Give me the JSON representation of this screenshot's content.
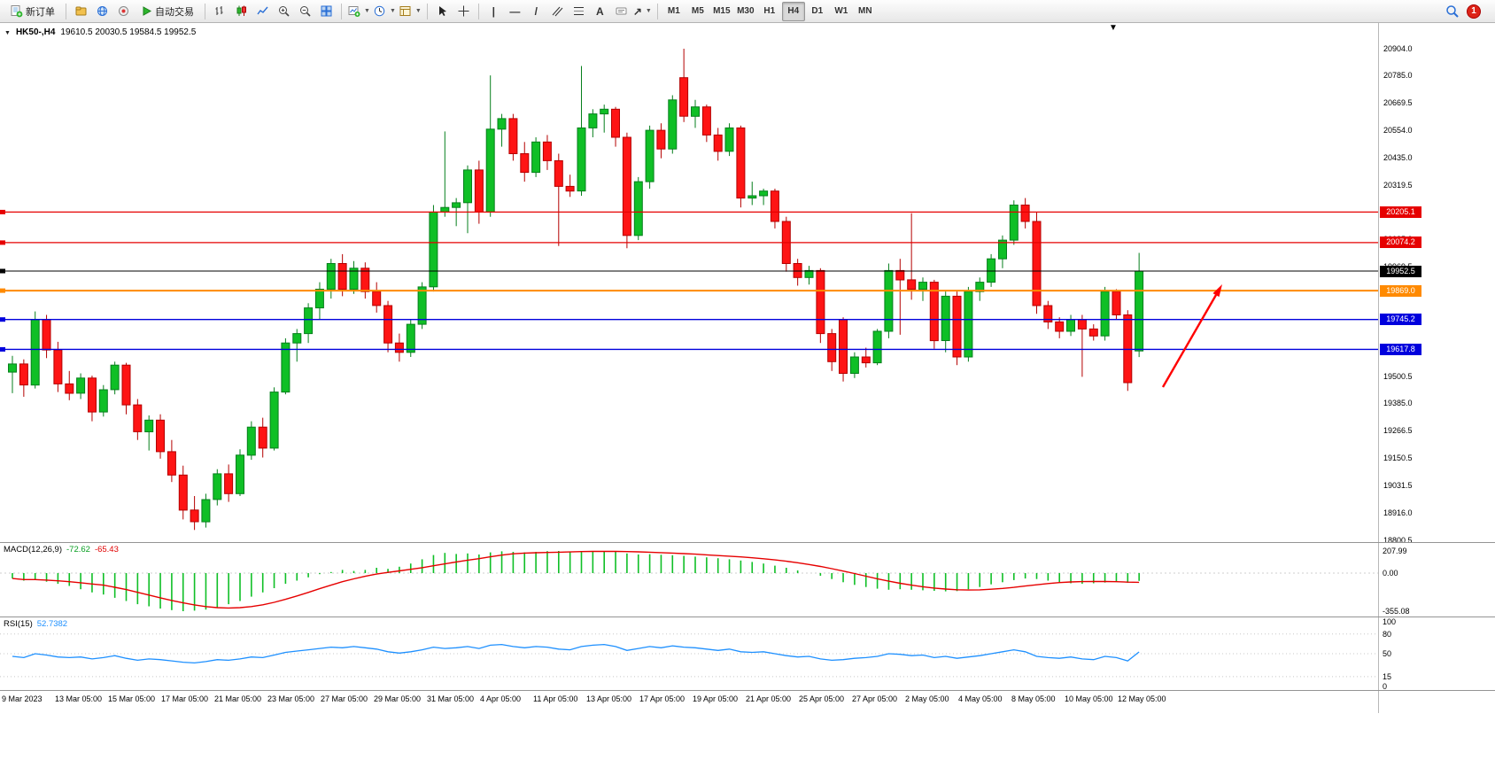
{
  "window": {
    "notification_count": "1"
  },
  "toolbar": {
    "new_order": "新订单",
    "autotrading": "自动交易",
    "timeframes": [
      {
        "label": "M1",
        "active": false
      },
      {
        "label": "M5",
        "active": false
      },
      {
        "label": "M15",
        "active": false
      },
      {
        "label": "M30",
        "active": false
      },
      {
        "label": "H1",
        "active": false
      },
      {
        "label": "H4",
        "active": true
      },
      {
        "label": "D1",
        "active": false
      },
      {
        "label": "W1",
        "active": false
      },
      {
        "label": "MN",
        "active": false
      }
    ]
  },
  "chart": {
    "symbol": "HK50-,H4",
    "ohlc": "19610.5 20030.5 19584.5 19952.5",
    "lines": [
      {
        "price": 20205.1,
        "label": "20205.1",
        "color": "#e60000",
        "width": 1.2
      },
      {
        "price": 20074.2,
        "label": "20074.2",
        "color": "#e60000",
        "width": 1.2
      },
      {
        "price": 19952.5,
        "label": "19952.5",
        "color": "#000000",
        "width": 1
      },
      {
        "price": 19869.0,
        "label": "19869.0",
        "color": "#ff8a00",
        "width": 2
      },
      {
        "price": 19745.2,
        "label": "19745.2",
        "color": "#0000dd",
        "width": 1.4
      },
      {
        "price": 19617.8,
        "label": "19617.8",
        "color": "#0000dd",
        "width": 1.4
      }
    ],
    "price_ticks": [
      "20904.0",
      "20785.0",
      "20669.5",
      "20554.0",
      "20435.0",
      "20319.5",
      "20204.0",
      "20085.0",
      "19969.5",
      "19850.5",
      "19735.0",
      "19619.5",
      "19500.5",
      "19385.0",
      "19266.5",
      "19150.5",
      "19031.5",
      "18916.0",
      "18800.5"
    ],
    "time_ticks": [
      "9 Mar 2023",
      "13 Mar 05:00",
      "15 Mar 05:00",
      "17 Mar 05:00",
      "21 Mar 05:00",
      "23 Mar 05:00",
      "27 Mar 05:00",
      "29 Mar 05:00",
      "31 Mar 05:00",
      "4 Apr 05:00",
      "11 Apr 05:00",
      "13 Apr 05:00",
      "17 Apr 05:00",
      "19 Apr 05:00",
      "21 Apr 05:00",
      "25 Apr 05:00",
      "27 Apr 05:00",
      "2 May 05:00",
      "4 May 05:00",
      "8 May 05:00",
      "10 May 05:00",
      "12 May 05:00"
    ]
  },
  "chart_data": {
    "type": "candlestick",
    "symbol": "HK50-",
    "timeframe": "H4",
    "ylim": [
      18800.5,
      20904.0
    ],
    "up_color": "#0fbf26",
    "down_color": "#fe1414",
    "candles": [
      [
        19520,
        19590,
        19430,
        19555
      ],
      [
        19555,
        19575,
        19415,
        19465
      ],
      [
        19465,
        19780,
        19450,
        19745
      ],
      [
        19745,
        19765,
        19580,
        19615
      ],
      [
        19615,
        19650,
        19435,
        19470
      ],
      [
        19470,
        19525,
        19400,
        19430
      ],
      [
        19430,
        19515,
        19405,
        19495
      ],
      [
        19495,
        19505,
        19310,
        19350
      ],
      [
        19350,
        19465,
        19330,
        19445
      ],
      [
        19445,
        19565,
        19425,
        19550
      ],
      [
        19550,
        19560,
        19340,
        19380
      ],
      [
        19380,
        19405,
        19230,
        19265
      ],
      [
        19265,
        19335,
        19185,
        19315
      ],
      [
        19315,
        19340,
        19150,
        19180
      ],
      [
        19180,
        19230,
        19050,
        19080
      ],
      [
        19080,
        19120,
        18890,
        18930
      ],
      [
        18930,
        18990,
        18845,
        18880
      ],
      [
        18880,
        19000,
        18855,
        18975
      ],
      [
        18975,
        19105,
        18950,
        19085
      ],
      [
        19085,
        19125,
        18965,
        19000
      ],
      [
        19000,
        19190,
        18990,
        19165
      ],
      [
        19165,
        19310,
        19145,
        19285
      ],
      [
        19285,
        19325,
        19155,
        19195
      ],
      [
        19195,
        19455,
        19185,
        19435
      ],
      [
        19435,
        19665,
        19425,
        19645
      ],
      [
        19645,
        19705,
        19565,
        19685
      ],
      [
        19685,
        19815,
        19645,
        19795
      ],
      [
        19795,
        19905,
        19745,
        19875
      ],
      [
        19875,
        20005,
        19835,
        19985
      ],
      [
        19985,
        20025,
        19845,
        19875
      ],
      [
        19875,
        19995,
        19855,
        19965
      ],
      [
        19965,
        19990,
        19835,
        19865
      ],
      [
        19865,
        19905,
        19775,
        19805
      ],
      [
        19805,
        19825,
        19605,
        19645
      ],
      [
        19645,
        19685,
        19565,
        19605
      ],
      [
        19605,
        19745,
        19585,
        19725
      ],
      [
        19725,
        19905,
        19705,
        19885
      ],
      [
        19885,
        20235,
        19865,
        20205
      ],
      [
        20205,
        20550,
        20185,
        20225
      ],
      [
        20225,
        20265,
        20145,
        20245
      ],
      [
        20245,
        20405,
        20115,
        20385
      ],
      [
        20385,
        20425,
        20155,
        20205
      ],
      [
        20205,
        20790,
        20185,
        20560
      ],
      [
        20560,
        20625,
        20485,
        20605
      ],
      [
        20605,
        20625,
        20425,
        20455
      ],
      [
        20455,
        20505,
        20335,
        20375
      ],
      [
        20375,
        20525,
        20355,
        20505
      ],
      [
        20505,
        20535,
        20385,
        20425
      ],
      [
        20425,
        20455,
        20060,
        20315
      ],
      [
        20315,
        20365,
        20270,
        20295
      ],
      [
        20295,
        20830,
        20275,
        20565
      ],
      [
        20565,
        20645,
        20525,
        20625
      ],
      [
        20625,
        20665,
        20545,
        20645
      ],
      [
        20645,
        20655,
        20485,
        20525
      ],
      [
        20525,
        20545,
        20050,
        20105
      ],
      [
        20105,
        20355,
        20085,
        20335
      ],
      [
        20335,
        20575,
        20305,
        20555
      ],
      [
        20555,
        20585,
        20435,
        20475
      ],
      [
        20475,
        20705,
        20455,
        20685
      ],
      [
        20780,
        20904,
        20590,
        20615
      ],
      [
        20615,
        20685,
        20565,
        20655
      ],
      [
        20655,
        20665,
        20505,
        20535
      ],
      [
        20535,
        20565,
        20425,
        20465
      ],
      [
        20465,
        20585,
        20445,
        20565
      ],
      [
        20565,
        20575,
        20225,
        20265
      ],
      [
        20265,
        20335,
        20235,
        20275
      ],
      [
        20275,
        20305,
        20235,
        20295
      ],
      [
        20295,
        20305,
        20135,
        20165
      ],
      [
        20165,
        20185,
        19950,
        19985
      ],
      [
        19985,
        20005,
        19890,
        19925
      ],
      [
        19925,
        19975,
        19895,
        19955
      ],
      [
        19955,
        19965,
        19645,
        19685
      ],
      [
        19685,
        19705,
        19525,
        19565
      ],
      [
        19745,
        19755,
        19480,
        19515
      ],
      [
        19515,
        19605,
        19495,
        19585
      ],
      [
        19585,
        19625,
        19540,
        19560
      ],
      [
        19560,
        19705,
        19550,
        19695
      ],
      [
        19695,
        19985,
        19665,
        19955
      ],
      [
        19955,
        20005,
        19680,
        19915
      ],
      [
        19915,
        20200,
        19830,
        19875
      ],
      [
        19875,
        19925,
        19825,
        19905
      ],
      [
        19905,
        19915,
        19620,
        19655
      ],
      [
        19655,
        19865,
        19605,
        19845
      ],
      [
        19845,
        19865,
        19550,
        19585
      ],
      [
        19585,
        19885,
        19565,
        19865
      ],
      [
        19865,
        19925,
        19825,
        19905
      ],
      [
        19905,
        20025,
        19885,
        20005
      ],
      [
        20005,
        20105,
        19965,
        20085
      ],
      [
        20085,
        20255,
        20065,
        20235
      ],
      [
        20235,
        20265,
        20135,
        20165
      ],
      [
        20165,
        20205,
        19770,
        19805
      ],
      [
        19805,
        19825,
        19705,
        19735
      ],
      [
        19735,
        19755,
        19665,
        19695
      ],
      [
        19695,
        19765,
        19675,
        19745
      ],
      [
        19745,
        19765,
        19500,
        19705
      ],
      [
        19705,
        19725,
        19655,
        19675
      ],
      [
        19675,
        19885,
        19655,
        19865
      ],
      [
        19865,
        19875,
        19745,
        19765
      ],
      [
        19765,
        19785,
        19440,
        19475
      ],
      [
        19610.5,
        20030.5,
        19584.5,
        19952.5
      ]
    ]
  },
  "macd": {
    "label": "MACD(12,26,9)",
    "value_main": "-72.62",
    "value_signal": "-65.43",
    "scale": [
      "207.99",
      "0.00",
      "-355.08"
    ],
    "scale_values": [
      207.99,
      0,
      -355.08
    ],
    "histogram_color": "#0fbf26",
    "signal_color": "#e60000",
    "histogram": [
      -50,
      -70,
      -60,
      -80,
      -100,
      -120,
      -150,
      -180,
      -200,
      -230,
      -260,
      -290,
      -310,
      -330,
      -345,
      -355,
      -350,
      -340,
      -320,
      -290,
      -260,
      -220,
      -180,
      -140,
      -100,
      -70,
      -40,
      -10,
      10,
      30,
      20,
      30,
      50,
      40,
      60,
      90,
      130,
      170,
      190,
      180,
      185,
      175,
      195,
      205,
      200,
      195,
      200,
      206,
      208,
      204,
      207,
      206,
      205,
      200,
      185,
      175,
      178,
      172,
      168,
      162,
      155,
      148,
      140,
      130,
      118,
      105,
      90,
      70,
      50,
      25,
      0,
      -25,
      -55,
      -85,
      -110,
      -130,
      -145,
      -155,
      -150,
      -155,
      -160,
      -165,
      -170,
      -168,
      -150,
      -130,
      -105,
      -85,
      -65,
      -50,
      -55,
      -70,
      -85,
      -95,
      -100,
      -95,
      -88,
      -80,
      -90,
      -72.6
    ]
  },
  "rsi": {
    "label": "RSI(15)",
    "value": "52.7382",
    "scale": [
      "100",
      "80",
      "50",
      "15",
      "0"
    ],
    "scale_values": [
      100,
      80,
      50,
      15,
      0
    ],
    "levels": [
      80,
      50,
      15
    ],
    "line_color": "#1e90ff",
    "values": [
      46,
      44,
      50,
      48,
      45,
      44,
      45,
      42,
      44,
      47,
      43,
      40,
      42,
      41,
      39,
      37,
      36,
      38,
      41,
      40,
      42,
      45,
      44,
      48,
      52,
      54,
      56,
      58,
      60,
      59,
      61,
      59,
      57,
      53,
      51,
      53,
      56,
      60,
      58,
      59,
      61,
      58,
      63,
      64,
      61,
      59,
      61,
      60,
      57,
      56,
      61,
      63,
      64,
      61,
      55,
      58,
      61,
      59,
      62,
      60,
      59,
      57,
      55,
      57,
      53,
      52,
      53,
      50,
      47,
      45,
      46,
      42,
      40,
      41,
      43,
      44,
      46,
      50,
      49,
      47,
      48,
      44,
      46,
      43,
      45,
      47,
      50,
      53,
      56,
      53,
      46,
      44,
      43,
      45,
      42,
      41,
      46,
      44,
      39,
      52.7
    ]
  },
  "annotation": {
    "arrow_color": "#ff0000"
  }
}
